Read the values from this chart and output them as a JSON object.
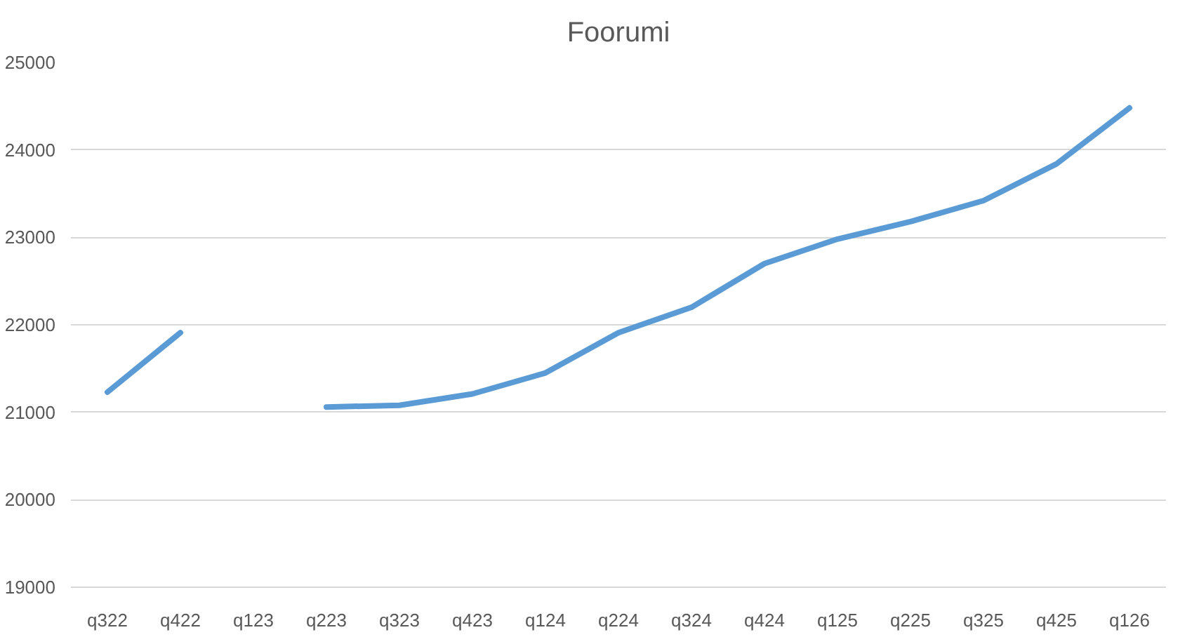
{
  "chart_data": {
    "type": "line",
    "title": "Foorumi",
    "categories": [
      "q322",
      "q422",
      "q123",
      "q223",
      "q323",
      "q423",
      "q124",
      "q224",
      "q324",
      "q424",
      "q125",
      "q225",
      "q325",
      "q425",
      "q126"
    ],
    "series": [
      {
        "color": "#5b9bd5",
        "values": [
          21230,
          21910,
          null,
          21060,
          21080,
          21210,
          21450,
          21910,
          22200,
          22700,
          22980,
          23180,
          23420,
          23840,
          24480
        ]
      }
    ],
    "ylim": [
      19000,
      25000
    ],
    "yticks": [
      19000,
      20000,
      21000,
      22000,
      23000,
      24000,
      25000
    ],
    "grid": "y",
    "marker": "none",
    "line_style": "solid"
  }
}
